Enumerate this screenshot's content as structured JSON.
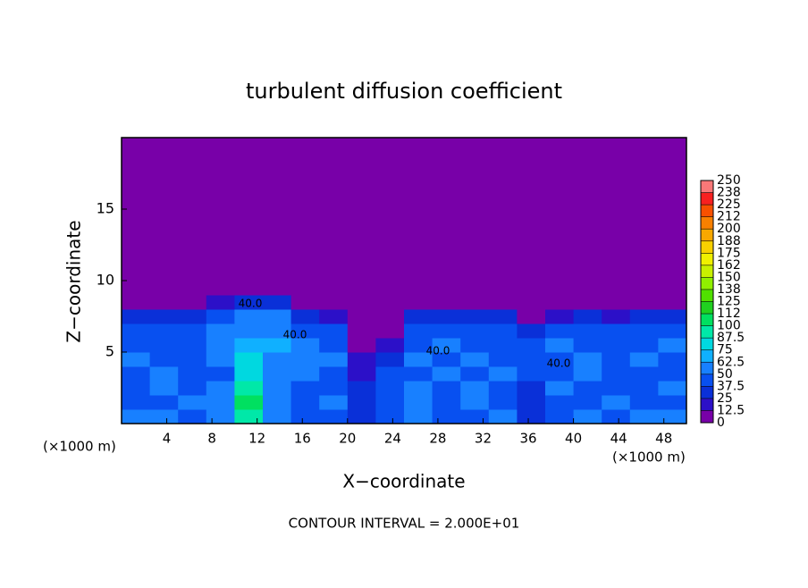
{
  "chart_data": {
    "type": "heatmap",
    "title": "turbulent diffusion coefficient",
    "x_label": "X−coordinate",
    "y_label": "Z−coordinate",
    "x_unit_label": "(×1000 m)",
    "y_unit_label": "(×1000 m)",
    "footnote": "CONTOUR INTERVAL = 2.000E+01",
    "contour_labels": [
      "40.0",
      "40.0",
      "40.0",
      "40.0"
    ],
    "xlim": [
      0,
      50
    ],
    "ylim": [
      0,
      20
    ],
    "xticks": [
      4,
      8,
      12,
      16,
      20,
      24,
      28,
      32,
      36,
      40,
      44,
      48
    ],
    "yticks": [
      5,
      10,
      15
    ],
    "x_edges": [
      0,
      2.5,
      5,
      7.5,
      10,
      12.5,
      15,
      17.5,
      20,
      22.5,
      25,
      27.5,
      30,
      32.5,
      35,
      37.5,
      40,
      42.5,
      45,
      47.5,
      50
    ],
    "y_edges": [
      0,
      1,
      2,
      3,
      4,
      5,
      6,
      7,
      8,
      9,
      20
    ],
    "values": [
      [
        55,
        50,
        48,
        60,
        95,
        52,
        45,
        40,
        30,
        45,
        50,
        48,
        45,
        50,
        35,
        48,
        50,
        45,
        52,
        50
      ],
      [
        48,
        45,
        52,
        55,
        100,
        58,
        42,
        50,
        28,
        40,
        55,
        46,
        50,
        42,
        30,
        45,
        48,
        50,
        44,
        47
      ],
      [
        45,
        50,
        40,
        58,
        92,
        62,
        45,
        38,
        25,
        42,
        52,
        48,
        55,
        46,
        32,
        50,
        45,
        42,
        48,
        50
      ],
      [
        42,
        55,
        46,
        48,
        85,
        60,
        52,
        44,
        20,
        38,
        46,
        52,
        48,
        50,
        40,
        46,
        52,
        48,
        45,
        44
      ],
      [
        50,
        44,
        48,
        52,
        78,
        58,
        55,
        50,
        15,
        30,
        50,
        45,
        52,
        48,
        44,
        48,
        50,
        46,
        50,
        48
      ],
      [
        46,
        48,
        45,
        55,
        70,
        65,
        50,
        46,
        10,
        18,
        48,
        50,
        46,
        45,
        42,
        52,
        45,
        48,
        46,
        50
      ],
      [
        44,
        42,
        40,
        50,
        62,
        55,
        48,
        42,
        6,
        8,
        44,
        46,
        48,
        44,
        30,
        46,
        48,
        44,
        48,
        45
      ],
      [
        30,
        32,
        28,
        42,
        55,
        50,
        28,
        22,
        5,
        5,
        26,
        30,
        32,
        30,
        8,
        24,
        30,
        22,
        30,
        32
      ],
      [
        5,
        5,
        5,
        18,
        35,
        26,
        5,
        5,
        5,
        5,
        5,
        5,
        5,
        5,
        5,
        5,
        5,
        5,
        5,
        5
      ],
      [
        5,
        5,
        5,
        5,
        5,
        5,
        5,
        5,
        5,
        5,
        5,
        5,
        5,
        5,
        5,
        5,
        5,
        5,
        5,
        5
      ]
    ],
    "colorbar": {
      "ticks": [
        0,
        12.5,
        25,
        37.5,
        50,
        62.5,
        75,
        87.5,
        100,
        {
          "value": 112.5,
          "label": "112"
        },
        125,
        {
          "value": 137.5,
          "label": "138"
        },
        150,
        {
          "value": 162.5,
          "label": "162"
        },
        175,
        {
          "value": 187.5,
          "label": "188"
        },
        200,
        {
          "value": 212.5,
          "label": "212"
        },
        225,
        {
          "value": 237.5,
          "label": "238"
        },
        250
      ],
      "colors": [
        "#7800a8",
        "#2c10c8",
        "#0a30d8",
        "#0850f0",
        "#1880ff",
        "#10b0ff",
        "#00d8e0",
        "#00e8a8",
        "#00e060",
        "#20d020",
        "#50e000",
        "#90f000",
        "#c8f000",
        "#f0f000",
        "#f8d000",
        "#f8a800",
        "#f88000",
        "#f85000",
        "#f82020",
        "#f87878"
      ]
    }
  }
}
